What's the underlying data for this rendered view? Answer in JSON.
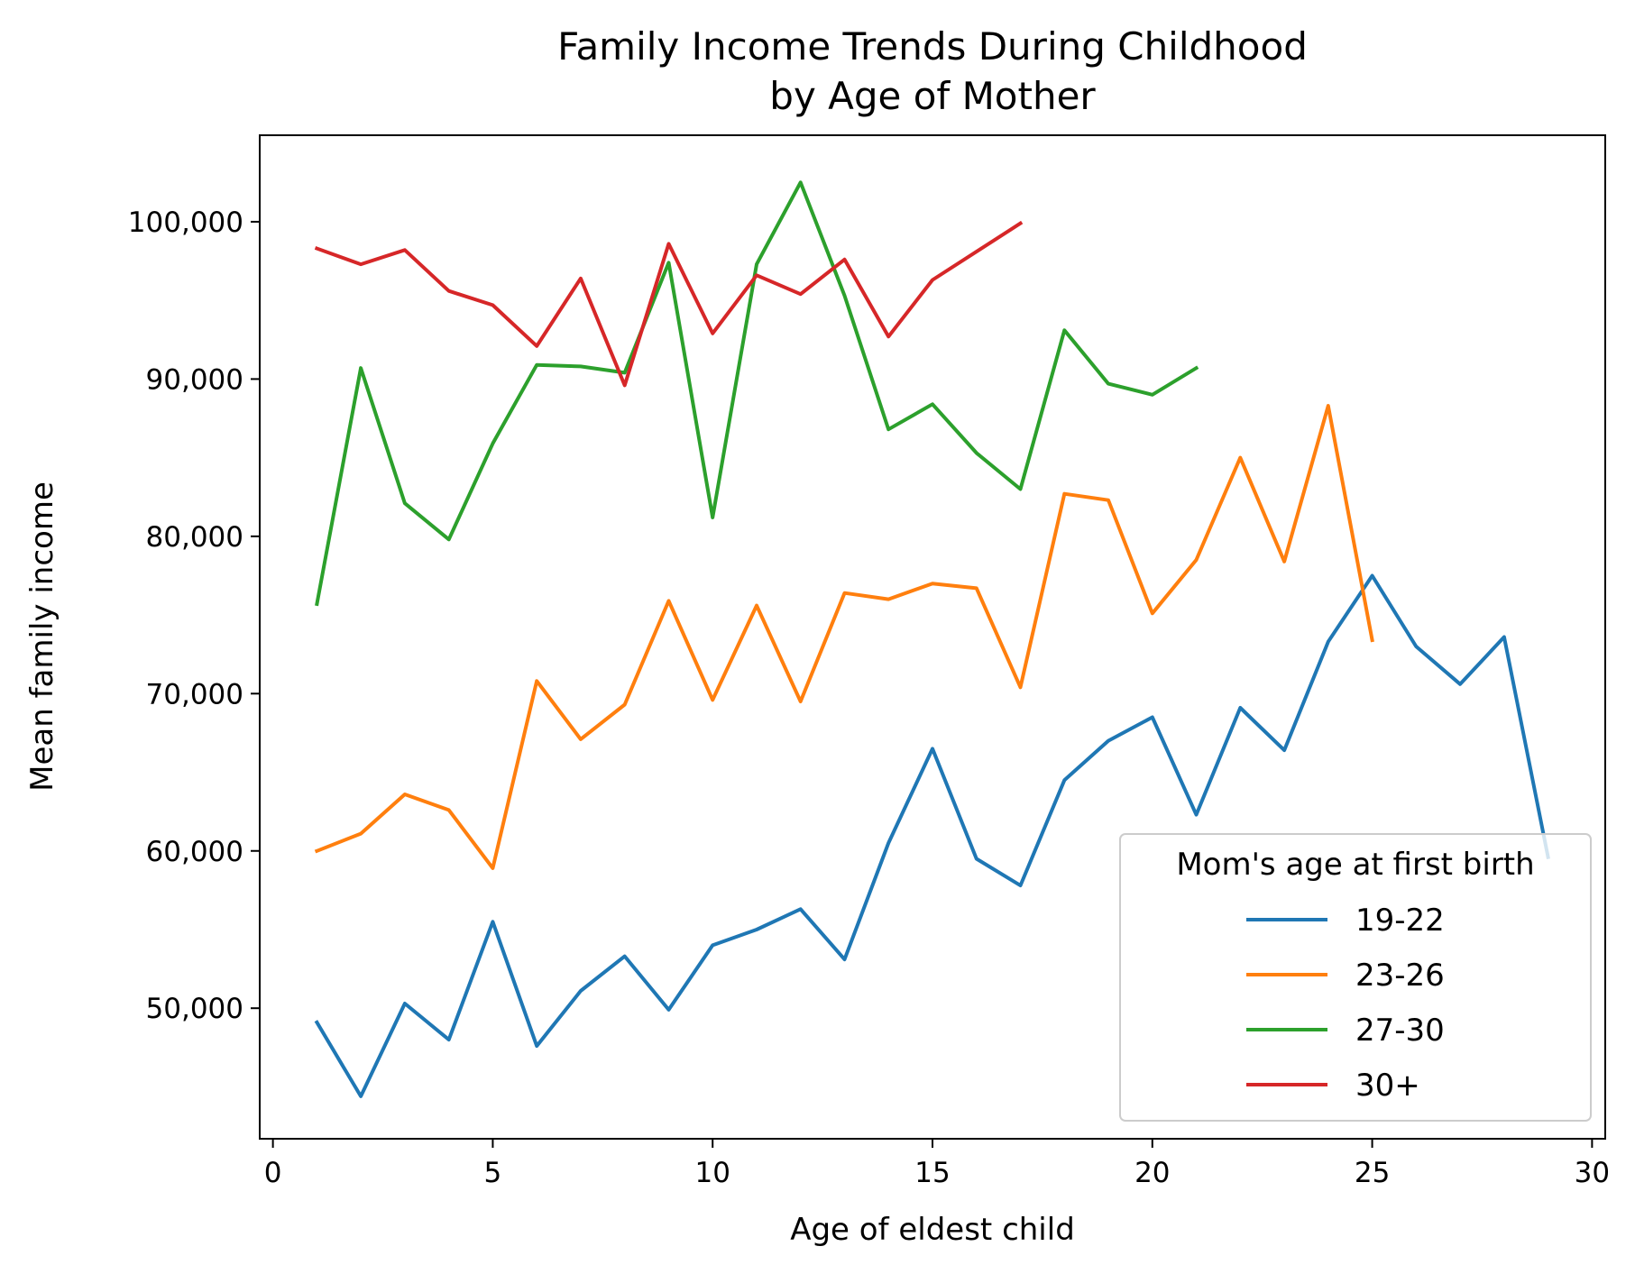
{
  "chart_data": {
    "type": "line",
    "title": [
      "Family Income Trends During Childhood",
      "by Age of Mother"
    ],
    "xlabel": "Age of eldest child",
    "ylabel": "Mean family income",
    "xlim": [
      -0.3,
      30.3
    ],
    "ylim": [
      41700,
      105500
    ],
    "xticks": [
      0,
      5,
      10,
      15,
      20,
      25,
      30
    ],
    "xtick_labels": [
      "0",
      "5",
      "10",
      "15",
      "20",
      "25",
      "30"
    ],
    "yticks": [
      50000,
      60000,
      70000,
      80000,
      90000,
      100000
    ],
    "ytick_labels": [
      "50,000",
      "60,000",
      "70,000",
      "80,000",
      "90,000",
      "100,000"
    ],
    "grid": false,
    "legend": {
      "title": "Mom's age at first birth",
      "placement": "lower-right"
    },
    "series": [
      {
        "name": "19-22",
        "color": "#1f77b4",
        "x": [
          1,
          2,
          3,
          4,
          5,
          6,
          7,
          8,
          9,
          10,
          11,
          12,
          13,
          14,
          15,
          16,
          17,
          18,
          19,
          20,
          21,
          22,
          23,
          24,
          25,
          26,
          27,
          28,
          29
        ],
        "values": [
          49100,
          44400,
          50300,
          48000,
          55500,
          47600,
          51100,
          53300,
          49900,
          54000,
          55000,
          56300,
          53100,
          60500,
          66500,
          59500,
          57800,
          64500,
          67000,
          68500,
          62300,
          69100,
          66400,
          73300,
          77500,
          73000,
          70600,
          73600,
          59600
        ]
      },
      {
        "name": "23-26",
        "color": "#ff7f0e",
        "x": [
          1,
          2,
          3,
          4,
          5,
          6,
          7,
          8,
          9,
          10,
          11,
          12,
          13,
          14,
          15,
          16,
          17,
          18,
          19,
          20,
          21,
          22,
          23,
          24,
          25
        ],
        "values": [
          60000,
          61100,
          63600,
          62600,
          58900,
          70800,
          67100,
          69300,
          75900,
          69600,
          75600,
          69500,
          76400,
          76000,
          77000,
          76700,
          70400,
          82700,
          82300,
          75100,
          78500,
          85000,
          78400,
          88300,
          73400
        ]
      },
      {
        "name": "27-30",
        "color": "#2ca02c",
        "x": [
          1,
          2,
          3,
          4,
          5,
          6,
          7,
          8,
          9,
          10,
          11,
          12,
          13,
          14,
          15,
          16,
          17,
          18,
          19,
          20,
          21
        ],
        "values": [
          75700,
          90700,
          82100,
          79800,
          85900,
          90900,
          90800,
          90400,
          97400,
          81200,
          97300,
          102500,
          95300,
          86800,
          88400,
          85300,
          83000,
          93100,
          89700,
          89000,
          90700
        ]
      },
      {
        "name": "30+",
        "color": "#d62728",
        "x": [
          1,
          2,
          3,
          4,
          5,
          6,
          7,
          8,
          9,
          10,
          11,
          12,
          13,
          14,
          15,
          16,
          17
        ],
        "values": [
          98300,
          97300,
          98200,
          95600,
          94700,
          92100,
          96400,
          89600,
          98600,
          92900,
          96600,
          95400,
          97600,
          92700,
          96300,
          98100,
          99900
        ]
      }
    ]
  }
}
